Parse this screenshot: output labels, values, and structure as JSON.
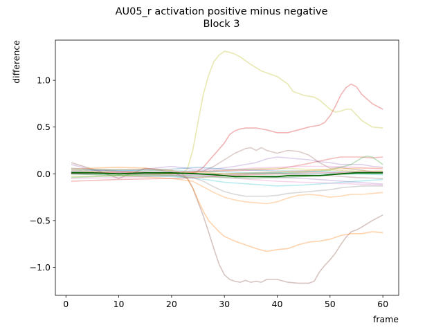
{
  "chart_data": {
    "type": "line",
    "title": "AU05_r activation positive minus negative",
    "subtitle": "Block 3",
    "xlabel": "frame",
    "ylabel": "difference",
    "xlim": [
      -2,
      63
    ],
    "ylim": [
      -1.3,
      1.43
    ],
    "xticks": [
      0,
      10,
      20,
      30,
      40,
      50,
      60
    ],
    "yticks": [
      -1.0,
      -0.5,
      0.0,
      0.5,
      1.0
    ],
    "ytick_labels": [
      "−1.0",
      "−0.5",
      "0.0",
      "0.5",
      "1.0"
    ],
    "grid": false,
    "legend": "none",
    "series": [
      {
        "color": "#bcbd22",
        "opacity": 0.35,
        "width": 1.6,
        "x": [
          1,
          5,
          10,
          15,
          20,
          22,
          23,
          24,
          25,
          26,
          27,
          28,
          29,
          30,
          31,
          32,
          33,
          35,
          37,
          40,
          42,
          43,
          45,
          47,
          48,
          50,
          51,
          52,
          53,
          54,
          56,
          58,
          60
        ],
        "y": [
          0.02,
          0.03,
          0.02,
          0.01,
          0.0,
          0.01,
          0.05,
          0.25,
          0.55,
          0.85,
          1.05,
          1.2,
          1.27,
          1.31,
          1.3,
          1.28,
          1.25,
          1.17,
          1.1,
          1.04,
          0.96,
          0.88,
          0.84,
          0.82,
          0.79,
          0.69,
          0.66,
          0.67,
          0.69,
          0.69,
          0.57,
          0.5,
          0.49
        ]
      },
      {
        "color": "#d62728",
        "opacity": 0.35,
        "width": 1.6,
        "x": [
          1,
          5,
          10,
          15,
          20,
          24,
          25,
          26,
          28,
          30,
          31,
          32,
          33,
          34,
          36,
          38,
          40,
          42,
          44,
          46,
          48,
          49,
          50,
          51,
          52,
          53,
          54,
          55,
          56,
          57,
          58,
          59,
          60
        ],
        "y": [
          0.01,
          0.02,
          0.0,
          0.01,
          0.0,
          0.01,
          0.03,
          0.07,
          0.2,
          0.33,
          0.42,
          0.46,
          0.48,
          0.49,
          0.49,
          0.47,
          0.44,
          0.44,
          0.47,
          0.5,
          0.52,
          0.55,
          0.62,
          0.72,
          0.84,
          0.92,
          0.96,
          0.93,
          0.85,
          0.8,
          0.75,
          0.72,
          0.69
        ]
      },
      {
        "color": "#8c564b",
        "opacity": 0.35,
        "width": 1.6,
        "x": [
          1,
          5,
          10,
          15,
          20,
          23,
          24,
          25,
          26,
          27,
          28,
          29,
          30,
          31,
          32,
          33,
          34,
          35,
          36,
          37,
          38,
          40,
          42,
          44,
          46,
          47,
          48,
          49,
          50,
          51,
          52,
          53,
          54,
          55,
          56,
          58,
          60
        ],
        "y": [
          0.12,
          0.05,
          -0.05,
          0.06,
          0.02,
          -0.05,
          -0.15,
          -0.3,
          -0.45,
          -0.62,
          -0.8,
          -0.97,
          -1.08,
          -1.13,
          -1.15,
          -1.16,
          -1.14,
          -1.16,
          -1.15,
          -1.16,
          -1.13,
          -1.13,
          -1.16,
          -1.17,
          -1.17,
          -1.15,
          -1.05,
          -0.98,
          -0.92,
          -0.85,
          -0.76,
          -0.68,
          -0.62,
          -0.6,
          -0.57,
          -0.5,
          -0.44
        ]
      },
      {
        "color": "#ff7f0e",
        "opacity": 0.35,
        "width": 1.6,
        "x": [
          1,
          5,
          10,
          15,
          20,
          22,
          23,
          24,
          25,
          26,
          27,
          28,
          29,
          30,
          32,
          34,
          36,
          38,
          40,
          42,
          44,
          46,
          48,
          50,
          52,
          54,
          56,
          58,
          60
        ],
        "y": [
          0.05,
          0.06,
          0.07,
          0.06,
          0.04,
          0.0,
          -0.05,
          -0.15,
          -0.28,
          -0.4,
          -0.5,
          -0.56,
          -0.62,
          -0.67,
          -0.72,
          -0.76,
          -0.8,
          -0.83,
          -0.81,
          -0.8,
          -0.76,
          -0.73,
          -0.72,
          -0.7,
          -0.66,
          -0.64,
          -0.64,
          -0.62,
          -0.63
        ]
      },
      {
        "color": "#8c564b",
        "opacity": 0.3,
        "width": 1.6,
        "x": [
          1,
          10,
          20,
          24,
          26,
          28,
          30,
          32,
          34,
          35,
          36,
          37,
          38,
          40,
          42,
          44,
          46,
          48,
          50,
          52,
          54,
          56,
          58,
          60
        ],
        "y": [
          0.0,
          0.01,
          0.0,
          0.01,
          0.03,
          0.08,
          0.15,
          0.22,
          0.27,
          0.28,
          0.25,
          0.28,
          0.25,
          0.22,
          0.25,
          0.24,
          0.2,
          0.12,
          0.06,
          0.07,
          0.05,
          0.04,
          0.02,
          0.02
        ]
      },
      {
        "color": "#ff7f0e",
        "opacity": 0.3,
        "width": 1.6,
        "x": [
          1,
          10,
          20,
          24,
          26,
          28,
          30,
          32,
          34,
          36,
          38,
          40,
          42,
          44,
          46,
          48,
          50,
          52,
          54,
          56,
          58,
          60
        ],
        "y": [
          0.0,
          -0.02,
          -0.05,
          -0.08,
          -0.14,
          -0.2,
          -0.25,
          -0.28,
          -0.3,
          -0.31,
          -0.32,
          -0.3,
          -0.26,
          -0.23,
          -0.22,
          -0.23,
          -0.25,
          -0.24,
          -0.22,
          -0.22,
          -0.21,
          -0.2
        ]
      },
      {
        "color": "#7f7f7f",
        "opacity": 0.3,
        "width": 1.6,
        "x": [
          1,
          10,
          20,
          24,
          26,
          28,
          30,
          32,
          34,
          36,
          38,
          40,
          42,
          44,
          46,
          48,
          50,
          52,
          54,
          56,
          58,
          60
        ],
        "y": [
          0.02,
          0.0,
          -0.02,
          -0.04,
          -0.08,
          -0.14,
          -0.19,
          -0.22,
          -0.24,
          -0.24,
          -0.24,
          -0.23,
          -0.21,
          -0.2,
          -0.19,
          -0.18,
          -0.17,
          -0.15,
          -0.14,
          -0.13,
          -0.13,
          -0.13
        ]
      },
      {
        "color": "#d62728",
        "opacity": 0.3,
        "width": 1.6,
        "x": [
          1,
          10,
          20,
          30,
          40,
          45,
          50,
          52,
          54,
          56,
          58,
          60
        ],
        "y": [
          0.0,
          0.02,
          0.01,
          0.03,
          0.05,
          0.1,
          0.16,
          0.18,
          0.18,
          0.18,
          0.17,
          0.18
        ]
      },
      {
        "color": "#9467bd",
        "opacity": 0.3,
        "width": 1.6,
        "x": [
          1,
          5,
          10,
          20,
          24,
          28,
          32,
          36,
          38,
          40,
          42,
          44,
          46,
          48,
          50,
          52,
          54,
          56,
          58,
          60
        ],
        "y": [
          0.1,
          0.04,
          0.02,
          0.08,
          0.05,
          0.05,
          0.08,
          0.12,
          0.16,
          0.18,
          0.17,
          0.16,
          0.15,
          0.13,
          0.12,
          0.1,
          0.1,
          0.1,
          0.08,
          0.07
        ]
      },
      {
        "color": "#2ca02c",
        "opacity": 0.3,
        "width": 1.6,
        "x": [
          1,
          10,
          20,
          30,
          40,
          45,
          50,
          54,
          56,
          57,
          58,
          60
        ],
        "y": [
          0.0,
          -0.01,
          0.0,
          0.0,
          0.01,
          0.02,
          0.04,
          0.1,
          0.17,
          0.19,
          0.18,
          0.1
        ]
      },
      {
        "color": "#17becf",
        "opacity": 0.3,
        "width": 1.6,
        "x": [
          1,
          10,
          20,
          25,
          30,
          35,
          40,
          45,
          50,
          55,
          60
        ],
        "y": [
          0.0,
          -0.02,
          -0.03,
          -0.05,
          -0.09,
          -0.11,
          -0.13,
          -0.12,
          -0.1,
          -0.08,
          -0.06
        ]
      },
      {
        "color": "#e377c2",
        "opacity": 0.3,
        "width": 1.6,
        "x": [
          1,
          10,
          20,
          25,
          30,
          35,
          40,
          45,
          50,
          55,
          60
        ],
        "y": [
          -0.05,
          -0.04,
          -0.02,
          -0.01,
          -0.04,
          -0.06,
          -0.08,
          -0.09,
          -0.1,
          -0.11,
          -0.12
        ]
      },
      {
        "color": "#1f77b4",
        "opacity": 0.3,
        "width": 1.6,
        "x": [
          1,
          10,
          20,
          25,
          30,
          35,
          40,
          45,
          50,
          55,
          60
        ],
        "y": [
          0.03,
          0.04,
          0.05,
          0.07,
          0.05,
          0.04,
          0.03,
          0.03,
          0.02,
          0.02,
          0.02
        ]
      },
      {
        "color": "#bcbd22",
        "opacity": 0.3,
        "width": 1.6,
        "x": [
          1,
          10,
          20,
          25,
          30,
          35,
          40,
          45,
          50,
          55,
          60
        ],
        "y": [
          -0.03,
          -0.02,
          0.0,
          0.02,
          0.04,
          0.05,
          0.06,
          0.05,
          0.04,
          0.03,
          0.03
        ]
      },
      {
        "color": "#ff7f0e",
        "opacity": 0.3,
        "width": 1.6,
        "x": [
          1,
          10,
          20,
          25,
          30,
          35,
          40,
          45,
          50,
          55,
          60
        ],
        "y": [
          0.04,
          0.05,
          0.03,
          0.02,
          0.0,
          0.01,
          0.02,
          0.03,
          0.05,
          0.06,
          0.06
        ]
      },
      {
        "color": "#d62728",
        "opacity": 0.3,
        "width": 1.6,
        "x": [
          1,
          10,
          20,
          25,
          30,
          35,
          40,
          45,
          50,
          55,
          60
        ],
        "y": [
          -0.08,
          -0.06,
          -0.05,
          -0.04,
          -0.02,
          -0.01,
          0.0,
          0.01,
          0.01,
          0.02,
          0.02
        ]
      },
      {
        "color": "#9467bd",
        "opacity": 0.3,
        "width": 1.6,
        "x": [
          1,
          10,
          20,
          25,
          30,
          35,
          40,
          45,
          50,
          55,
          60
        ],
        "y": [
          0.02,
          0.0,
          -0.01,
          -0.02,
          -0.02,
          -0.03,
          -0.04,
          -0.05,
          -0.07,
          -0.09,
          -0.11
        ]
      },
      {
        "color": "#8c564b",
        "opacity": 0.3,
        "width": 1.6,
        "x": [
          1,
          10,
          20,
          25,
          30,
          35,
          40,
          45,
          50,
          55,
          60
        ],
        "y": [
          0.06,
          0.03,
          0.01,
          0.0,
          -0.01,
          0.0,
          0.0,
          -0.01,
          -0.02,
          -0.04,
          -0.05
        ]
      },
      {
        "color": "#2ca02c",
        "opacity": 0.3,
        "width": 1.6,
        "x": [
          1,
          10,
          20,
          25,
          30,
          35,
          40,
          45,
          50,
          55,
          60
        ],
        "y": [
          -0.04,
          -0.02,
          -0.02,
          -0.03,
          -0.04,
          -0.05,
          -0.04,
          -0.03,
          -0.01,
          0.0,
          0.0
        ]
      },
      {
        "color": "#17becf",
        "opacity": 0.3,
        "width": 1.6,
        "x": [
          1,
          10,
          20,
          25,
          30,
          35,
          40,
          45,
          50,
          55,
          60
        ],
        "y": [
          0.05,
          0.04,
          0.03,
          0.03,
          0.02,
          0.01,
          0.01,
          0.0,
          0.0,
          0.0,
          -0.01
        ]
      },
      {
        "color": "#e377c2",
        "opacity": 0.3,
        "width": 1.6,
        "x": [
          1,
          10,
          20,
          25,
          30,
          35,
          40,
          45,
          50,
          55,
          60
        ],
        "y": [
          0.0,
          0.01,
          0.02,
          0.03,
          0.04,
          0.06,
          0.07,
          0.08,
          0.08,
          0.07,
          0.05
        ]
      },
      {
        "color": "#006400",
        "opacity": 1.0,
        "width": 1.8,
        "x": [
          1,
          5,
          10,
          15,
          20,
          25,
          28,
          30,
          32,
          35,
          38,
          40,
          42,
          45,
          48,
          50,
          52,
          55,
          58,
          60
        ],
        "y": [
          0.01,
          0.01,
          0.0,
          0.01,
          0.01,
          0.0,
          -0.01,
          -0.02,
          -0.03,
          -0.03,
          -0.03,
          -0.03,
          -0.02,
          -0.02,
          -0.02,
          -0.01,
          0.0,
          0.01,
          0.01,
          0.01
        ]
      }
    ]
  }
}
